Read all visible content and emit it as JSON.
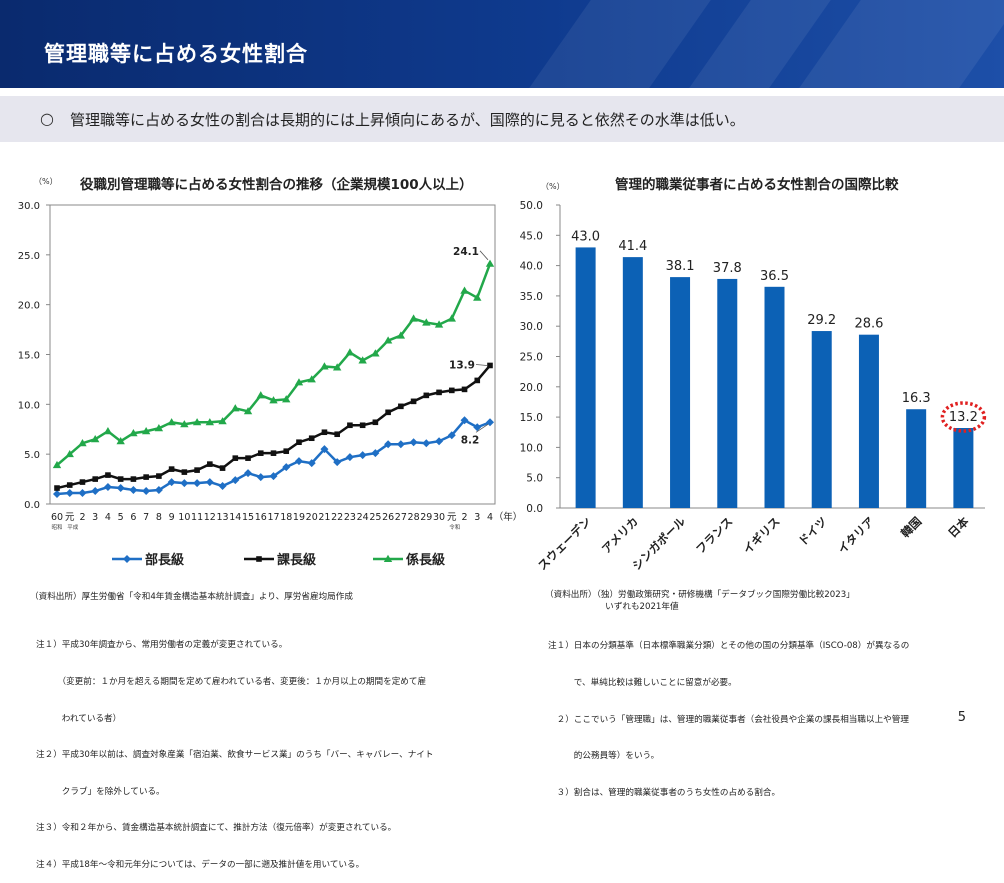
{
  "header": {
    "title": "管理職等に占める女性割合"
  },
  "summary": {
    "bullet": "○",
    "text": "管理職等に占める女性の割合は長期的には上昇傾向にあるが、国際的に見ると依然その水準は低い。"
  },
  "page_number": "5",
  "colors": {
    "bucho": "#1f6fc5",
    "kacho": "#111111",
    "kakaricho": "#22a84a",
    "bar": "#0c61b5",
    "highlight": "#e02020"
  },
  "left_chart": {
    "title": "役職別管理職等に占める女性割合の推移（企業規模100人以上）",
    "unit": "（%）",
    "year_suffix": "（年）",
    "era_labels": {
      "showa": "昭和",
      "heisei": "平成",
      "reiwa": "令和"
    },
    "source": "（資料出所）厚生労働省「令和4年賃金構造基本統計調査」より、厚労省雇均局作成",
    "notes": [
      "注１）平成30年調査から、常用労働者の定義が変更されている。",
      "　　　（変更前：１か月を超える期間を定めて雇われている者、変更後：１か月以上の期間を定めて雇",
      "　　　われている者）",
      "注２）平成30年以前は、調査対象産業「宿泊業、飲食サービス業」のうち「バー、キャバレー、ナイト",
      "　　　クラブ」を除外している。",
      "注３）令和２年から、賃金構造基本統計調査にて、推計方法（復元倍率）が変更されている。",
      "注４）平成18年～令和元年分については、データの一部に遡及推計値を用いている。"
    ]
  },
  "right_chart": {
    "title": "管理的職業従事者に占める女性割合の国際比較",
    "unit": "（%）",
    "source": "（資料出所）（独）労働政策研究・研修機構「データブック国際労働比較2023」",
    "source2": "　　　　　　　いずれも2021年値",
    "notes": [
      "注１）日本の分類基準（日本標準職業分類）とその他の国の分類基準（ISCO-08）が異なるの",
      "　　　で、単純比較は難しいことに留意が必要。",
      "　２）ここでいう「管理職」は、管理的職業従事者（会社役員や企業の課長相当職以上や管理",
      "　　　的公務員等）をいう。",
      "　３）割合は、管理的職業従事者のうち女性の占める割合。"
    ]
  },
  "chart_data": [
    {
      "type": "line",
      "title": "役職別管理職等に占める女性割合の推移（企業規模100人以上）",
      "ylabel": "（%）",
      "xlabel": "（年）",
      "ylim": [
        0,
        30
      ],
      "yticks": [
        "0.0",
        "5.0",
        "10.0",
        "15.0",
        "20.0",
        "25.0",
        "30.0"
      ],
      "x": [
        "60",
        "元",
        "2",
        "3",
        "4",
        "5",
        "6",
        "7",
        "8",
        "9",
        "10",
        "11",
        "12",
        "13",
        "14",
        "15",
        "16",
        "17",
        "18",
        "19",
        "20",
        "21",
        "22",
        "23",
        "24",
        "25",
        "26",
        "27",
        "28",
        "29",
        "30",
        "元",
        "2",
        "3",
        "4"
      ],
      "series": [
        {
          "name": "部長級",
          "values": [
            1.0,
            1.1,
            1.1,
            1.3,
            1.7,
            1.6,
            1.4,
            1.3,
            1.4,
            2.2,
            2.1,
            2.1,
            2.2,
            1.8,
            2.4,
            3.1,
            2.7,
            2.8,
            3.7,
            4.3,
            4.1,
            5.5,
            4.2,
            4.7,
            4.9,
            5.1,
            6.0,
            6.0,
            6.2,
            6.1,
            6.3,
            6.9,
            8.4,
            7.7,
            8.2
          ]
        },
        {
          "name": "課長級",
          "values": [
            1.6,
            1.9,
            2.2,
            2.5,
            2.9,
            2.5,
            2.5,
            2.7,
            2.8,
            3.5,
            3.2,
            3.4,
            4.0,
            3.6,
            4.6,
            4.6,
            5.1,
            5.1,
            5.3,
            6.2,
            6.6,
            7.2,
            7.0,
            7.9,
            7.9,
            8.2,
            9.2,
            9.8,
            10.3,
            10.9,
            11.2,
            11.4,
            11.5,
            12.4,
            13.9
          ]
        },
        {
          "name": "係長級",
          "values": [
            3.9,
            5.0,
            6.1,
            6.5,
            7.3,
            6.3,
            7.1,
            7.3,
            7.6,
            8.2,
            8.0,
            8.2,
            8.2,
            8.3,
            9.6,
            9.3,
            10.9,
            10.4,
            10.5,
            12.2,
            12.5,
            13.8,
            13.7,
            15.2,
            14.4,
            15.1,
            16.4,
            16.9,
            18.6,
            18.2,
            18.0,
            18.6,
            21.4,
            20.7,
            24.1
          ]
        }
      ],
      "labels_shown": {
        "部長級": "8.2",
        "課長級": "13.9",
        "係長級": "24.1"
      },
      "legend": "bottom"
    },
    {
      "type": "bar",
      "title": "管理的職業従事者に占める女性割合の国際比較",
      "ylabel": "（%）",
      "ylim": [
        0,
        50
      ],
      "yticks": [
        "0.0",
        "5.0",
        "10.0",
        "15.0",
        "20.0",
        "25.0",
        "30.0",
        "35.0",
        "40.0",
        "45.0",
        "50.0"
      ],
      "categories": [
        "スウェーデン",
        "アメリカ",
        "シンガポール",
        "フランス",
        "イギリス",
        "ドイツ",
        "イタリア",
        "韓国",
        "日本"
      ],
      "values": [
        43.0,
        41.4,
        38.1,
        37.8,
        36.5,
        29.2,
        28.6,
        16.3,
        13.2
      ],
      "value_labels": [
        "43.0",
        "41.4",
        "38.1",
        "37.8",
        "36.5",
        "29.2",
        "28.6",
        "16.3",
        "13.2"
      ],
      "highlight": "日本"
    }
  ]
}
